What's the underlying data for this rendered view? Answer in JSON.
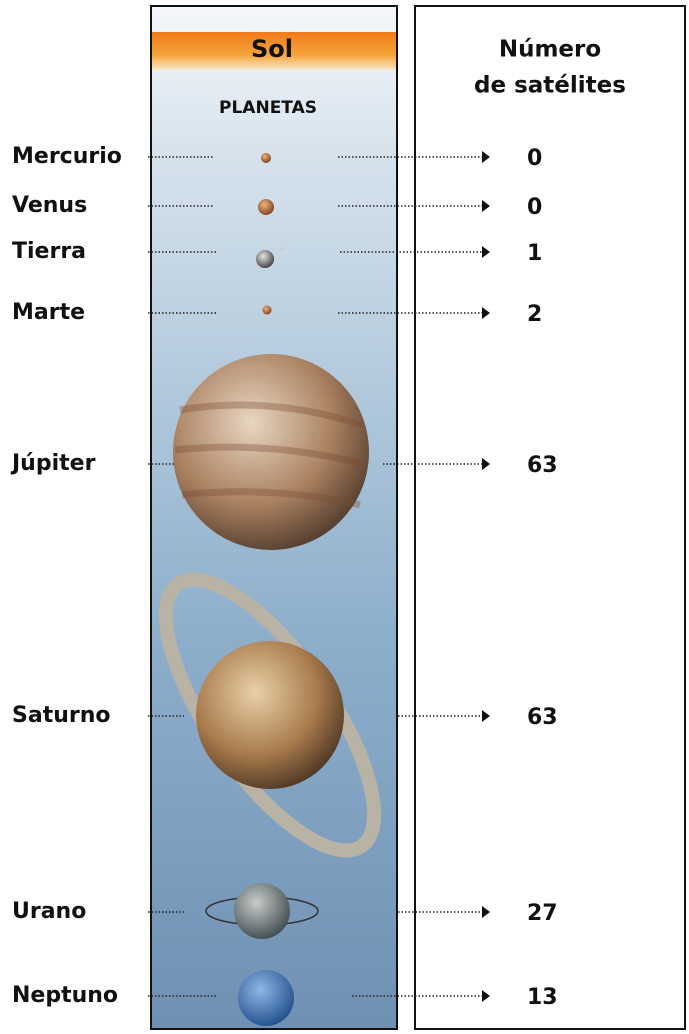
{
  "header": {
    "sun": "Sol",
    "planets": "PLANETAS",
    "satellites_title": [
      "Número",
      "de satélites"
    ]
  },
  "planets": [
    {
      "name": "Mercurio",
      "satellites": 0
    },
    {
      "name": "Venus",
      "satellites": 0
    },
    {
      "name": "Tierra",
      "satellites": 1
    },
    {
      "name": "Marte",
      "satellites": 2
    },
    {
      "name": "Júpiter",
      "satellites": 63
    },
    {
      "name": "Saturno",
      "satellites": 63
    },
    {
      "name": "Urano",
      "satellites": 27
    },
    {
      "name": "Neptuno",
      "satellites": 13
    }
  ]
}
